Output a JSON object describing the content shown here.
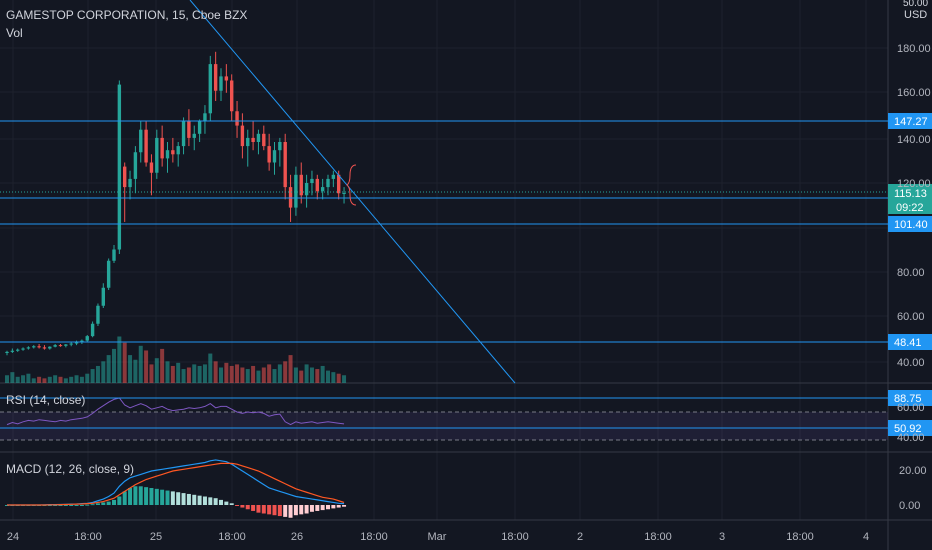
{
  "header": {
    "symbol_title": "GAMESTOP CORPORATION, 15, Cboe BZX",
    "volume_label": "Vol",
    "rsi_label": "RSI (14, close)",
    "macd_label": "MACD (12, 26, close, 9)",
    "currency": "USD",
    "currency_top": "50.00"
  },
  "colors": {
    "background": "#131722",
    "up": "#26a69a",
    "down": "#ef5350",
    "hline": "#2196f3",
    "rsi": "#7e57c2",
    "macd": "#2196f3",
    "signal": "#ff5722"
  },
  "chart_data": [
    {
      "type": "candlestick",
      "title": "GAMESTOP CORPORATION, 15, Cboe BZX",
      "price_axis": {
        "ticks": [
          40,
          60,
          80,
          120,
          140,
          160,
          180
        ]
      },
      "x_ticks": [
        "24",
        "18:00",
        "25",
        "18:00",
        "26",
        "18:00",
        "Mar",
        "18:00",
        "2",
        "18:00",
        "3",
        "18:00",
        "4"
      ],
      "horizontal_levels": [
        147.27,
        112.89,
        101.4,
        48.41
      ],
      "last_price": 115.13,
      "countdown": "09:22",
      "candles": [
        {
          "o": 44,
          "h": 45,
          "l": 43,
          "c": 44.5
        },
        {
          "o": 44.5,
          "h": 46,
          "l": 44,
          "c": 45
        },
        {
          "o": 45,
          "h": 46,
          "l": 44.5,
          "c": 45.5
        },
        {
          "o": 45.5,
          "h": 46.5,
          "l": 45,
          "c": 46
        },
        {
          "o": 46,
          "h": 47,
          "l": 45.5,
          "c": 46.5
        },
        {
          "o": 46.5,
          "h": 47.5,
          "l": 46,
          "c": 47
        },
        {
          "o": 47,
          "h": 48,
          "l": 46,
          "c": 46.5
        },
        {
          "o": 46.5,
          "h": 47.5,
          "l": 45.5,
          "c": 46
        },
        {
          "o": 46,
          "h": 47,
          "l": 45.5,
          "c": 46.8
        },
        {
          "o": 46.8,
          "h": 48,
          "l": 46.5,
          "c": 47.5
        },
        {
          "o": 47.5,
          "h": 48,
          "l": 46.8,
          "c": 47.2
        },
        {
          "o": 47.2,
          "h": 48,
          "l": 46.5,
          "c": 47.8
        },
        {
          "o": 47.8,
          "h": 49,
          "l": 47,
          "c": 48.2
        },
        {
          "o": 48.2,
          "h": 49.5,
          "l": 47.5,
          "c": 48.8
        },
        {
          "o": 48.8,
          "h": 50,
          "l": 48,
          "c": 49.5
        },
        {
          "o": 49.5,
          "h": 52,
          "l": 49,
          "c": 51.5
        },
        {
          "o": 51.5,
          "h": 58,
          "l": 51,
          "c": 57
        },
        {
          "o": 57,
          "h": 66,
          "l": 56,
          "c": 65
        },
        {
          "o": 65,
          "h": 75,
          "l": 64,
          "c": 73
        },
        {
          "o": 73,
          "h": 86,
          "l": 72,
          "c": 85
        },
        {
          "o": 85,
          "h": 92,
          "l": 84,
          "c": 90
        },
        {
          "o": 90,
          "h": 170,
          "l": 88,
          "c": 168
        },
        {
          "o": 128,
          "h": 130,
          "l": 101,
          "c": 118
        },
        {
          "o": 118,
          "h": 126,
          "l": 112,
          "c": 122
        },
        {
          "o": 122,
          "h": 138,
          "l": 115,
          "c": 135
        },
        {
          "o": 135,
          "h": 150,
          "l": 130,
          "c": 146
        },
        {
          "o": 146,
          "h": 150,
          "l": 128,
          "c": 130
        },
        {
          "o": 130,
          "h": 134,
          "l": 114,
          "c": 125
        },
        {
          "o": 125,
          "h": 146,
          "l": 122,
          "c": 142
        },
        {
          "o": 142,
          "h": 148,
          "l": 128,
          "c": 132
        },
        {
          "o": 132,
          "h": 140,
          "l": 125,
          "c": 136
        },
        {
          "o": 136,
          "h": 142,
          "l": 130,
          "c": 134
        },
        {
          "o": 134,
          "h": 140,
          "l": 128,
          "c": 138
        },
        {
          "o": 138,
          "h": 152,
          "l": 134,
          "c": 150
        },
        {
          "o": 150,
          "h": 156,
          "l": 138,
          "c": 142
        },
        {
          "o": 142,
          "h": 148,
          "l": 136,
          "c": 144
        },
        {
          "o": 144,
          "h": 151,
          "l": 140,
          "c": 150
        },
        {
          "o": 150,
          "h": 158,
          "l": 144,
          "c": 154
        },
        {
          "o": 154,
          "h": 182,
          "l": 150,
          "c": 178
        },
        {
          "o": 178,
          "h": 184,
          "l": 160,
          "c": 165
        },
        {
          "o": 165,
          "h": 176,
          "l": 160,
          "c": 172
        },
        {
          "o": 172,
          "h": 178,
          "l": 164,
          "c": 170
        },
        {
          "o": 170,
          "h": 173,
          "l": 150,
          "c": 155
        },
        {
          "o": 155,
          "h": 160,
          "l": 142,
          "c": 148
        },
        {
          "o": 148,
          "h": 154,
          "l": 132,
          "c": 138
        },
        {
          "o": 138,
          "h": 146,
          "l": 128,
          "c": 142
        },
        {
          "o": 142,
          "h": 150,
          "l": 136,
          "c": 140
        },
        {
          "o": 140,
          "h": 146,
          "l": 134,
          "c": 144
        },
        {
          "o": 144,
          "h": 148,
          "l": 136,
          "c": 138
        },
        {
          "o": 138,
          "h": 144,
          "l": 126,
          "c": 130
        },
        {
          "o": 130,
          "h": 140,
          "l": 124,
          "c": 136
        },
        {
          "o": 136,
          "h": 142,
          "l": 128,
          "c": 140
        },
        {
          "o": 140,
          "h": 144,
          "l": 112,
          "c": 118
        },
        {
          "o": 118,
          "h": 124,
          "l": 101,
          "c": 108
        },
        {
          "o": 108,
          "h": 128,
          "l": 104,
          "c": 124
        },
        {
          "o": 124,
          "h": 130,
          "l": 110,
          "c": 114
        },
        {
          "o": 114,
          "h": 124,
          "l": 108,
          "c": 120
        },
        {
          "o": 120,
          "h": 126,
          "l": 114,
          "c": 122
        },
        {
          "o": 122,
          "h": 124,
          "l": 112,
          "c": 116
        },
        {
          "o": 116,
          "h": 122,
          "l": 112,
          "c": 118
        },
        {
          "o": 118,
          "h": 124,
          "l": 114,
          "c": 122
        },
        {
          "o": 122,
          "h": 126,
          "l": 118,
          "c": 124
        },
        {
          "o": 124,
          "h": 126,
          "l": 112,
          "c": 115
        },
        {
          "o": 115,
          "h": 118,
          "l": 110,
          "c": 115.13
        }
      ]
    },
    {
      "type": "bar",
      "title": "Vol",
      "values": [
        5,
        7,
        4,
        5,
        6,
        3,
        4,
        3,
        4,
        5,
        4,
        3,
        4,
        5,
        4,
        6,
        9,
        11,
        14,
        18,
        22,
        30,
        26,
        18,
        15,
        24,
        21,
        12,
        16,
        22,
        14,
        11,
        13,
        9,
        10,
        12,
        11,
        12,
        19,
        14,
        10,
        13,
        11,
        12,
        10,
        9,
        11,
        8,
        10,
        12,
        9,
        12,
        14,
        18,
        10,
        8,
        12,
        10,
        9,
        11,
        8,
        7,
        6,
        5
      ]
    },
    {
      "type": "line",
      "title": "RSI (14, close)",
      "levels": [
        88.75,
        50.92
      ],
      "y_ticks": [
        60,
        40
      ],
      "values": [
        52,
        55,
        53,
        56,
        58,
        57,
        59,
        58,
        57,
        56,
        58,
        57,
        59,
        60,
        61,
        63,
        68,
        74,
        79,
        84,
        88,
        90,
        80,
        76,
        79,
        82,
        79,
        74,
        76,
        78,
        74,
        72,
        73,
        74,
        76,
        75,
        76,
        78,
        82,
        76,
        78,
        78,
        74,
        70,
        68,
        70,
        69,
        70,
        68,
        64,
        66,
        67,
        56,
        52,
        56,
        54,
        55,
        56,
        54,
        55,
        56,
        55,
        54,
        53
      ]
    },
    {
      "type": "bar+line",
      "title": "MACD (12, 26, close, 9)",
      "y_ticks": [
        20,
        0
      ],
      "histogram": [
        0,
        0,
        0,
        0,
        0,
        0,
        0,
        0,
        0,
        0,
        0,
        0,
        0,
        0,
        0,
        0.2,
        0.5,
        1,
        1.5,
        2,
        3,
        5,
        8,
        10,
        11,
        11,
        10.5,
        10,
        9.5,
        9,
        8.5,
        8,
        7.5,
        7,
        6.5,
        6,
        5.5,
        5,
        4.5,
        4,
        3,
        2,
        1,
        -0.5,
        -1.5,
        -2.5,
        -3.5,
        -4.5,
        -5,
        -5.5,
        -6,
        -6.5,
        -7,
        -7.5,
        -6,
        -5.5,
        -5,
        -4,
        -3.5,
        -3,
        -2.5,
        -2,
        -1.5,
        -1
      ],
      "macd_line": [
        0,
        0,
        0,
        0,
        0,
        0,
        0,
        0.1,
        0.2,
        0.2,
        0.3,
        0.4,
        0.5,
        0.6,
        0.8,
        1,
        1.5,
        2.5,
        3.5,
        5,
        7,
        11,
        14,
        16,
        17,
        18,
        19,
        20,
        20.5,
        21,
        21.5,
        22,
        22.5,
        23,
        23.5,
        24,
        24.5,
        25,
        26,
        26.5,
        26,
        25.5,
        24,
        22,
        20,
        18,
        16,
        14,
        12,
        10,
        9,
        8,
        7,
        6,
        5,
        4.5,
        4,
        3.5,
        3,
        2.5,
        2,
        1.5,
        1,
        0.8
      ],
      "signal_line": [
        0,
        0,
        0,
        0,
        0,
        0,
        0,
        0,
        0.1,
        0.1,
        0.2,
        0.3,
        0.4,
        0.5,
        0.6,
        0.8,
        1,
        1.5,
        2,
        3,
        4,
        6,
        8,
        10,
        12,
        13.5,
        15,
        16,
        17,
        18,
        19,
        20,
        20.5,
        21,
        21.5,
        22,
        22.5,
        23,
        23.5,
        24,
        24.5,
        24.5,
        24.5,
        24,
        23,
        22,
        21,
        20,
        18.5,
        17,
        15.5,
        14,
        12.5,
        11,
        9.5,
        8.5,
        7.5,
        6.5,
        5.5,
        4.5,
        4,
        3.5,
        2.5,
        1.5
      ]
    }
  ]
}
